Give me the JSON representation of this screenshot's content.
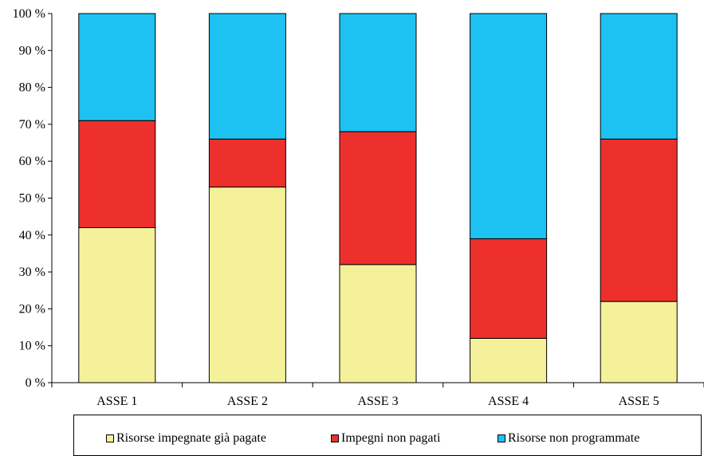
{
  "chart_data": {
    "type": "bar",
    "stacked": true,
    "percent": true,
    "categories": [
      "ASSE 1",
      "ASSE 2",
      "ASSE 3",
      "ASSE 4",
      "ASSE 5"
    ],
    "series": [
      {
        "name": "Risorse impegnate già pagate",
        "color": "#f5f09a",
        "values": [
          42,
          53,
          32,
          12,
          22
        ]
      },
      {
        "name": "Impegni non pagati",
        "color": "#ee302c",
        "values": [
          29,
          13,
          36,
          27,
          44
        ]
      },
      {
        "name": "Risorse non programmate",
        "color": "#1dc2f2",
        "values": [
          29,
          34,
          32,
          61,
          34
        ]
      }
    ],
    "yticks": [
      "0 %",
      "10 %",
      "20 %",
      "30 %",
      "40 %",
      "50 %",
      "60 %",
      "70 %",
      "80 %",
      "90 %",
      "100 %"
    ],
    "ylim": [
      0,
      100
    ],
    "grid": false,
    "legend_position": "bottom",
    "title": "",
    "xlabel": "",
    "ylabel": ""
  }
}
